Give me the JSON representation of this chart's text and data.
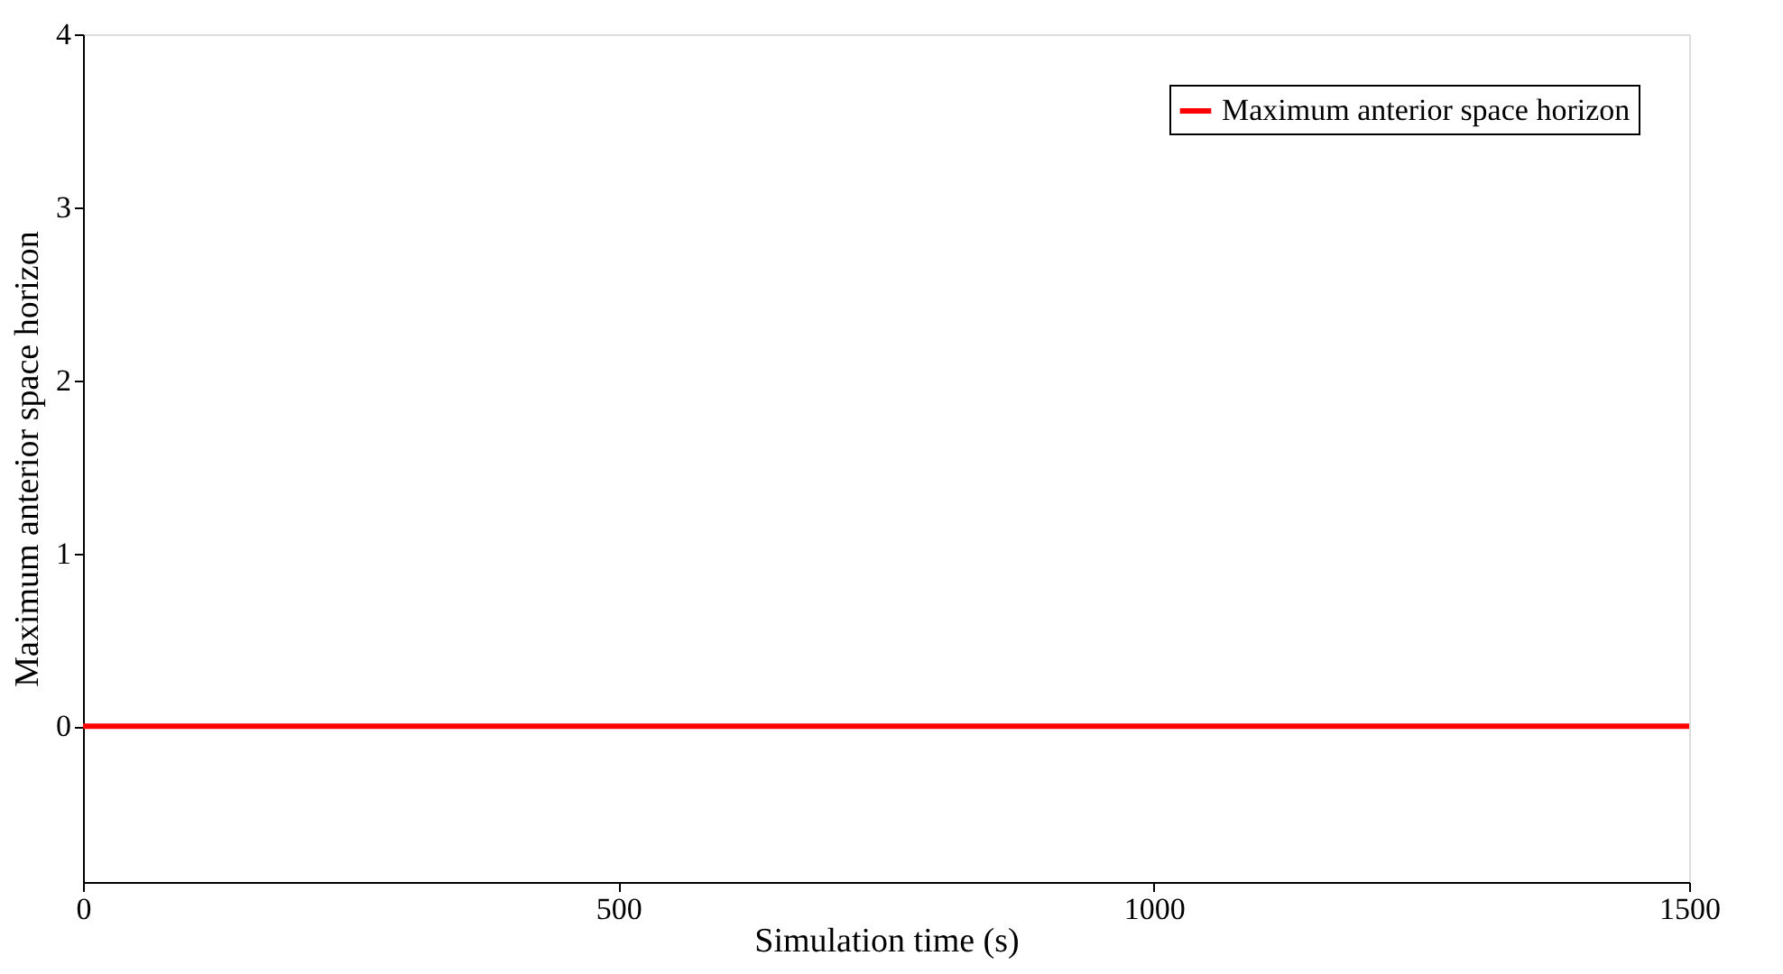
{
  "chart_data": {
    "type": "line",
    "xlabel": "Simulation time (s)",
    "ylabel": "Maximum anterior space horizon",
    "x": [
      0,
      1500
    ],
    "series": [
      {
        "name": "Maximum anterior space horizon",
        "color": "#ff0000",
        "values": [
          0,
          0
        ]
      }
    ],
    "xlim": [
      0,
      1500
    ],
    "xticks": [
      0,
      500,
      1000,
      1500
    ],
    "ylim": [
      -0.9,
      4
    ],
    "yticks": [
      0,
      1,
      2,
      3,
      4
    ],
    "grid": false,
    "legend": "top right",
    "marker": "none",
    "line_style": "solid"
  }
}
